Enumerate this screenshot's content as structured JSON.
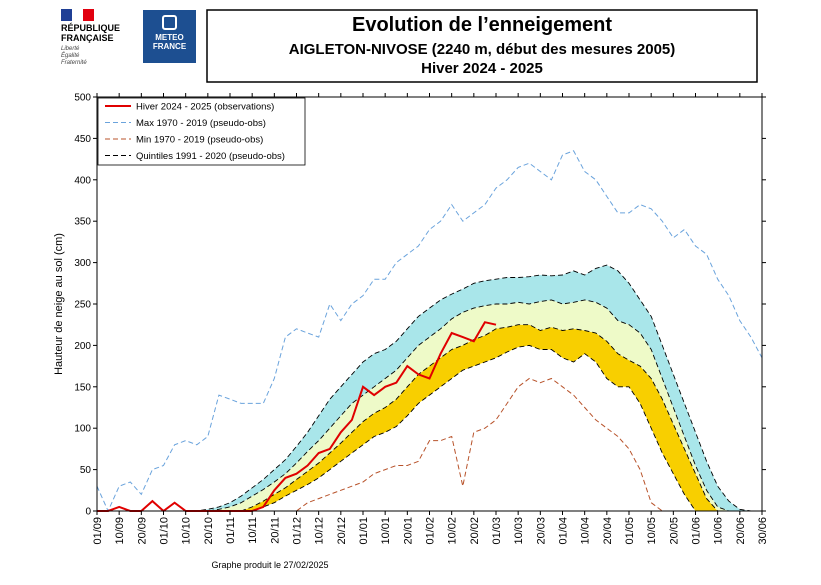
{
  "header": {
    "republic": [
      "RÉPUBLIQUE",
      "FRANÇAISE"
    ],
    "motto": [
      "Liberté",
      "Égalité",
      "Fraternité"
    ],
    "agency": [
      "METEO",
      "FRANCE"
    ]
  },
  "chart_data": {
    "type": "line",
    "title": "Evolution de l’enneigement",
    "subtitle": "AIGLETON-NIVOSE (2240 m, début des mesures 2005)",
    "subtitle2": "Hiver 2024 - 2025",
    "y_label": "Hauteur de neige au sol (cm)",
    "footer": "Graphe produit le 27/02/2025",
    "xlim": [
      0,
      30
    ],
    "xticks": [
      {
        "value": 0,
        "label": "01/09"
      },
      {
        "value": 1,
        "label": "10/09"
      },
      {
        "value": 2,
        "label": "20/09"
      },
      {
        "value": 3,
        "label": "01/10"
      },
      {
        "value": 4,
        "label": "10/10"
      },
      {
        "value": 5,
        "label": "20/10"
      },
      {
        "value": 6,
        "label": "01/11"
      },
      {
        "value": 7,
        "label": "10/11"
      },
      {
        "value": 8,
        "label": "20/11"
      },
      {
        "value": 9,
        "label": "01/12"
      },
      {
        "value": 10,
        "label": "10/12"
      },
      {
        "value": 11,
        "label": "20/12"
      },
      {
        "value": 12,
        "label": "01/01"
      },
      {
        "value": 13,
        "label": "10/01"
      },
      {
        "value": 14,
        "label": "20/01"
      },
      {
        "value": 15,
        "label": "01/02"
      },
      {
        "value": 16,
        "label": "10/02"
      },
      {
        "value": 17,
        "label": "20/02"
      },
      {
        "value": 18,
        "label": "01/03"
      },
      {
        "value": 19,
        "label": "10/03"
      },
      {
        "value": 20,
        "label": "20/03"
      },
      {
        "value": 21,
        "label": "01/04"
      },
      {
        "value": 22,
        "label": "10/04"
      },
      {
        "value": 23,
        "label": "20/04"
      },
      {
        "value": 24,
        "label": "01/05"
      },
      {
        "value": 25,
        "label": "10/05"
      },
      {
        "value": 26,
        "label": "20/05"
      },
      {
        "value": 27,
        "label": "01/06"
      },
      {
        "value": 28,
        "label": "10/06"
      },
      {
        "value": 29,
        "label": "20/06"
      },
      {
        "value": 30,
        "label": "30/06"
      }
    ],
    "ylim": [
      0,
      500
    ],
    "yticks": [
      0,
      50,
      100,
      150,
      200,
      250,
      300,
      350,
      400,
      450,
      500
    ],
    "x": [
      0,
      0.5,
      1,
      1.5,
      2,
      2.5,
      3,
      3.5,
      4,
      4.5,
      5,
      5.5,
      6,
      6.5,
      7,
      7.5,
      8,
      8.5,
      9,
      9.5,
      10,
      10.5,
      11,
      11.5,
      12,
      12.5,
      13,
      13.5,
      14,
      14.5,
      15,
      15.5,
      16,
      16.5,
      17,
      17.5,
      18,
      18.5,
      19,
      19.5,
      20,
      20.5,
      21,
      21.5,
      22,
      22.5,
      23,
      23.5,
      24,
      24.5,
      25,
      25.5,
      26,
      26.5,
      27,
      27.5,
      28,
      28.5,
      29,
      29.5,
      30
    ],
    "series": [
      {
        "name": "Hiver 2024 - 2025 (observations)",
        "color": "#e00000",
        "dash": false,
        "values": [
          0,
          0,
          5,
          0,
          0,
          12,
          0,
          10,
          0,
          0,
          0,
          0,
          0,
          0,
          0,
          5,
          25,
          40,
          45,
          55,
          70,
          75,
          95,
          110,
          150,
          140,
          150,
          155,
          175,
          165,
          160,
          190,
          215,
          210,
          205,
          228,
          225,
          null,
          null,
          null,
          null,
          null,
          null,
          null,
          null,
          null,
          null,
          null,
          null,
          null,
          null,
          null,
          null,
          null,
          null,
          null,
          null,
          null,
          null,
          null,
          null
        ]
      },
      {
        "name": "Max 1970 - 2019 (pseudo-obs)",
        "color": "#6aa3dc",
        "dash": true,
        "values": [
          30,
          0,
          30,
          35,
          20,
          50,
          55,
          80,
          85,
          80,
          90,
          140,
          135,
          130,
          130,
          130,
          160,
          210,
          220,
          215,
          210,
          250,
          230,
          250,
          260,
          280,
          280,
          300,
          310,
          320,
          340,
          350,
          370,
          350,
          360,
          370,
          390,
          400,
          415,
          420,
          410,
          400,
          430,
          435,
          410,
          400,
          380,
          360,
          360,
          370,
          365,
          350,
          330,
          340,
          320,
          310,
          280,
          260,
          230,
          210,
          185
        ]
      },
      {
        "name": "Min 1970 - 2019 (pseudo-obs)",
        "color": "#b8532b",
        "dash": true,
        "values": [
          0,
          0,
          0,
          0,
          0,
          0,
          0,
          0,
          0,
          0,
          0,
          0,
          0,
          0,
          0,
          0,
          0,
          0,
          0,
          10,
          15,
          20,
          25,
          30,
          35,
          45,
          50,
          55,
          55,
          60,
          85,
          85,
          90,
          30,
          95,
          100,
          110,
          130,
          150,
          160,
          155,
          160,
          150,
          140,
          125,
          110,
          100,
          90,
          75,
          50,
          10,
          0,
          null,
          null,
          null,
          null,
          null,
          null,
          null,
          null,
          null
        ]
      },
      {
        "name": "Quintiles 1991 - 2020 (pseudo-obs)",
        "color": "#000000",
        "dash": true,
        "fills": [
          "#f8cf00",
          "#eefac8",
          "#a9e6ea"
        ],
        "levels": [
          [
            0,
            0,
            0,
            0,
            0,
            0,
            0,
            0,
            0,
            0,
            0,
            0,
            0,
            0,
            0,
            5,
            10,
            18,
            25,
            32,
            40,
            50,
            60,
            70,
            80,
            90,
            95,
            102,
            115,
            130,
            140,
            150,
            160,
            170,
            175,
            180,
            185,
            192,
            198,
            200,
            195,
            195,
            185,
            180,
            190,
            180,
            160,
            150,
            150,
            130,
            100,
            70,
            45,
            20,
            0,
            0,
            0,
            0,
            0,
            0,
            0
          ],
          [
            0,
            0,
            0,
            0,
            0,
            0,
            0,
            0,
            0,
            0,
            0,
            0,
            0,
            0,
            5,
            12,
            20,
            28,
            38,
            48,
            58,
            70,
            82,
            95,
            108,
            118,
            125,
            135,
            150,
            165,
            175,
            185,
            195,
            200,
            207,
            212,
            220,
            222,
            225,
            225,
            218,
            222,
            218,
            220,
            218,
            215,
            205,
            190,
            182,
            175,
            160,
            135,
            105,
            75,
            45,
            15,
            0,
            0,
            0,
            0,
            0
          ],
          [
            0,
            0,
            0,
            0,
            0,
            0,
            0,
            0,
            0,
            0,
            0,
            2,
            5,
            10,
            18,
            26,
            35,
            45,
            58,
            72,
            85,
            100,
            115,
            130,
            140,
            150,
            160,
            170,
            185,
            200,
            210,
            220,
            232,
            240,
            245,
            248,
            250,
            250,
            252,
            250,
            253,
            255,
            250,
            252,
            255,
            252,
            245,
            230,
            225,
            215,
            195,
            160,
            125,
            90,
            55,
            25,
            5,
            0,
            0,
            0,
            0
          ],
          [
            0,
            0,
            0,
            0,
            0,
            0,
            0,
            0,
            0,
            0,
            2,
            5,
            10,
            18,
            28,
            38,
            50,
            62,
            78,
            95,
            115,
            135,
            150,
            165,
            180,
            190,
            195,
            205,
            220,
            235,
            245,
            255,
            262,
            268,
            275,
            278,
            280,
            282,
            282,
            283,
            285,
            284,
            285,
            290,
            285,
            293,
            297,
            290,
            275,
            255,
            235,
            200,
            165,
            130,
            95,
            60,
            30,
            12,
            2,
            0,
            0
          ]
        ]
      }
    ]
  }
}
